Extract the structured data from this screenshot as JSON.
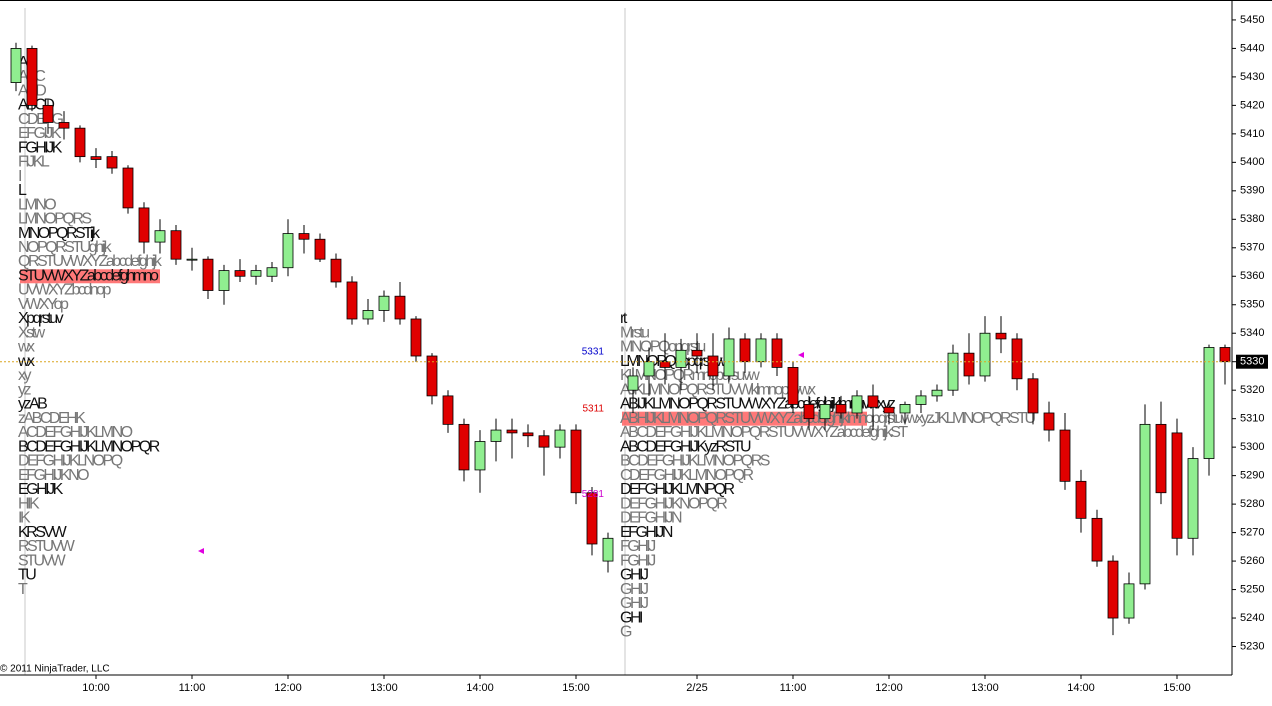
{
  "chart_data": {
    "type": "candlestick",
    "categories": [
      null,
      null,
      null,
      null,
      null,
      "10:00",
      null,
      null,
      null,
      null,
      null,
      "11:00",
      null,
      null,
      null,
      null,
      null,
      "12:00",
      null,
      null,
      null,
      null,
      null,
      "13:00",
      null,
      null,
      null,
      null,
      null,
      "14:00",
      null,
      null,
      null,
      null,
      null,
      "15:00",
      null,
      null,
      null,
      null,
      null,
      null,
      "2/25",
      null,
      null,
      null,
      null,
      null,
      "11:00",
      null,
      null,
      null,
      null,
      null,
      "12:00",
      null,
      null,
      null,
      null,
      null,
      "13:00",
      null,
      null,
      null,
      null,
      null,
      "14:00",
      null,
      null,
      null,
      null,
      null,
      "15:00",
      null,
      null,
      null
    ],
    "open": [
      5428,
      5440,
      5420,
      5414,
      5412,
      5402,
      5402,
      5398,
      5384,
      5372,
      5376,
      5366,
      5366,
      5355,
      5362,
      5360,
      5360,
      5363,
      5375,
      5373,
      5366,
      5358,
      5345,
      5348,
      5353,
      5345,
      5332,
      5318,
      5308,
      5292,
      5302,
      5306,
      5305,
      5304,
      5300,
      5306,
      5284,
      5260,
      5320,
      5325,
      5330,
      5328,
      5334,
      5332,
      5325,
      5338,
      5330,
      5338,
      5328,
      5315,
      5310,
      5315,
      5312,
      5318,
      5314,
      5312,
      5315,
      5318,
      5320,
      5333,
      5325,
      5340,
      5338,
      5324,
      5312,
      5306,
      5288,
      5275,
      5260,
      5240,
      5252,
      5308,
      5305,
      5268,
      5296,
      5335
    ],
    "high": [
      5442,
      5441,
      5422,
      5418,
      5413,
      5405,
      5404,
      5399,
      5386,
      5380,
      5378,
      5370,
      5367,
      5364,
      5366,
      5364,
      5365,
      5380,
      5378,
      5375,
      5368,
      5360,
      5352,
      5355,
      5358,
      5346,
      5333,
      5320,
      5310,
      5306,
      5310,
      5310,
      5308,
      5306,
      5308,
      5308,
      5286,
      5270,
      5328,
      5335,
      5340,
      5338,
      5340,
      5340,
      5342,
      5340,
      5340,
      5340,
      5330,
      5318,
      5318,
      5318,
      5320,
      5322,
      5316,
      5316,
      5320,
      5322,
      5336,
      5340,
      5346,
      5346,
      5340,
      5326,
      5316,
      5312,
      5292,
      5278,
      5262,
      5256,
      5315,
      5316,
      5310,
      5300,
      5336,
      5336
    ],
    "low": [
      5425,
      5418,
      5410,
      5408,
      5400,
      5398,
      5396,
      5382,
      5368,
      5368,
      5364,
      5362,
      5352,
      5350,
      5358,
      5357,
      5358,
      5360,
      5368,
      5365,
      5356,
      5343,
      5343,
      5344,
      5343,
      5330,
      5315,
      5305,
      5288,
      5284,
      5295,
      5296,
      5300,
      5290,
      5296,
      5280,
      5262,
      5256,
      5312,
      5318,
      5322,
      5320,
      5326,
      5320,
      5323,
      5326,
      5328,
      5325,
      5312,
      5306,
      5306,
      5310,
      5310,
      5306,
      5308,
      5308,
      5312,
      5316,
      5318,
      5322,
      5323,
      5333,
      5320,
      5308,
      5302,
      5285,
      5270,
      5258,
      5234,
      5238,
      5250,
      5280,
      5262,
      5262,
      5290,
      5322
    ],
    "close": [
      5440,
      5420,
      5414,
      5412,
      5402,
      5401,
      5398,
      5384,
      5372,
      5376,
      5366,
      5366,
      5355,
      5362,
      5360,
      5362,
      5363,
      5375,
      5373,
      5366,
      5358,
      5345,
      5348,
      5353,
      5345,
      5332,
      5318,
      5308,
      5292,
      5302,
      5306,
      5305,
      5304,
      5300,
      5306,
      5284,
      5266,
      5268,
      5325,
      5330,
      5328,
      5334,
      5332,
      5325,
      5338,
      5330,
      5338,
      5328,
      5315,
      5310,
      5315,
      5312,
      5318,
      5314,
      5312,
      5315,
      5318,
      5320,
      5333,
      5325,
      5340,
      5338,
      5324,
      5312,
      5306,
      5288,
      5275,
      5260,
      5240,
      5252,
      5308,
      5284,
      5268,
      5296,
      5335,
      5330
    ],
    "up_color": "#90ee90",
    "down_color": "#e00000",
    "ylim": [
      5220,
      5457
    ],
    "yticks": [
      5230,
      5240,
      5250,
      5260,
      5270,
      5280,
      5290,
      5300,
      5310,
      5320,
      5330,
      5340,
      5350,
      5360,
      5370,
      5380,
      5390,
      5400,
      5410,
      5420,
      5430,
      5440,
      5450
    ],
    "last_price": 5330,
    "price_line_color": "#daa520",
    "annotations": [
      {
        "value": 5331,
        "color": "#0000cc"
      },
      {
        "value": 5311,
        "color": "#dd0000"
      },
      {
        "value": 5281,
        "color": "#cc00cc"
      }
    ],
    "profiles": [
      {
        "poc": 5360,
        "rows": [
          {
            "price": 5435,
            "letters": "AB"
          },
          {
            "price": 5430,
            "letters": "ABC"
          },
          {
            "price": 5425,
            "letters": "ACD"
          },
          {
            "price": 5420,
            "letters": "ABCD"
          },
          {
            "price": 5415,
            "letters": "CDEFG"
          },
          {
            "price": 5410,
            "letters": "EFGIJK"
          },
          {
            "price": 5405,
            "letters": "FGHIJK"
          },
          {
            "price": 5400,
            "letters": "FIJKL"
          },
          {
            "price": 5395,
            "letters": "I"
          },
          {
            "price": 5390,
            "letters": "L"
          },
          {
            "price": 5385,
            "letters": "LMNO"
          },
          {
            "price": 5380,
            "letters": "LMNOPQRS"
          },
          {
            "price": 5375,
            "letters": "MNOPQRSTijk"
          },
          {
            "price": 5370,
            "letters": "NOPQRSTUghijk"
          },
          {
            "price": 5365,
            "letters": "QRSTUVWXYZabcdefghijk"
          },
          {
            "price": 5360,
            "letters": "STUVWXYZabcdefghmno"
          },
          {
            "price": 5355,
            "letters": "UVWXYZbcdnop"
          },
          {
            "price": 5350,
            "letters": "VWXYop"
          },
          {
            "price": 5345,
            "letters": "Xpqrstuv"
          },
          {
            "price": 5340,
            "letters": "Xstw"
          },
          {
            "price": 5335,
            "letters": "wx"
          },
          {
            "price": 5330,
            "letters": "wx"
          },
          {
            "price": 5325,
            "letters": "xy"
          },
          {
            "price": 5320,
            "letters": "yz"
          },
          {
            "price": 5315,
            "letters": "yzAB"
          },
          {
            "price": 5310,
            "letters": "zABCDEHK"
          },
          {
            "price": 5305,
            "letters": "ACDEFGHIJKLMNO"
          },
          {
            "price": 5300,
            "letters": "BCDEFGHIJKLMNOPQR"
          },
          {
            "price": 5295,
            "letters": "DEFGHIJKLNOPQ"
          },
          {
            "price": 5290,
            "letters": "EFGHIJKNO"
          },
          {
            "price": 5285,
            "letters": "EGHIJK"
          },
          {
            "price": 5280,
            "letters": "HIK"
          },
          {
            "price": 5275,
            "letters": "IK"
          },
          {
            "price": 5270,
            "letters": "KRSVW"
          },
          {
            "price": 5265,
            "letters": "RSTUVW"
          },
          {
            "price": 5260,
            "letters": "STUVW"
          },
          {
            "price": 5255,
            "letters": "TU"
          },
          {
            "price": 5250,
            "letters": "T"
          }
        ]
      },
      {
        "poc": 5310,
        "rows": [
          {
            "price": 5345,
            "letters": "rt"
          },
          {
            "price": 5340,
            "letters": "Mrstu"
          },
          {
            "price": 5335,
            "letters": "MNOPQopqrstu"
          },
          {
            "price": 5330,
            "letters": "LMNOPQnopqrsuvw"
          },
          {
            "price": 5325,
            "letters": "KLMNOPQRmnopqrsuvw"
          },
          {
            "price": 5320,
            "letters": "AJKLMNOPQRSTUVWklmnopuvwx"
          },
          {
            "price": 5315,
            "letters": "ABIJKLMNOPQRSTUVWXYZabcdefghijklmnuvwxyz"
          },
          {
            "price": 5310,
            "letters": "ABHIJKLMNOPQRSTUVWXYZabcdefghijklmnopqrstuvwxyzJKLMNOPQRSTU"
          },
          {
            "price": 5305,
            "letters": "ABCDEFGHIJKLMNOPQRSTUVWXYZabcdefghijkST"
          },
          {
            "price": 5300,
            "letters": "ABCDEFGHIJKyzRSTU"
          },
          {
            "price": 5295,
            "letters": "BCDEFGHIJKLMNOPQRS"
          },
          {
            "price": 5290,
            "letters": "CDEFGHIJKLMNOPQR"
          },
          {
            "price": 5285,
            "letters": "DEFGHIJKLMNPQR"
          },
          {
            "price": 5280,
            "letters": "DEFGHIJKNOPQR"
          },
          {
            "price": 5275,
            "letters": "DEFGHIJN"
          },
          {
            "price": 5270,
            "letters": "EFGHIJN"
          },
          {
            "price": 5265,
            "letters": "FGHIJ"
          },
          {
            "price": 5260,
            "letters": "FGHIJ"
          },
          {
            "price": 5255,
            "letters": "GHIJ"
          },
          {
            "price": 5250,
            "letters": "GHIJ"
          },
          {
            "price": 5245,
            "letters": "GHIJ"
          },
          {
            "price": 5240,
            "letters": "GHI"
          },
          {
            "price": 5235,
            "letters": "G"
          }
        ]
      }
    ],
    "copyright": "© 2011 NinjaTrader, LLC"
  }
}
